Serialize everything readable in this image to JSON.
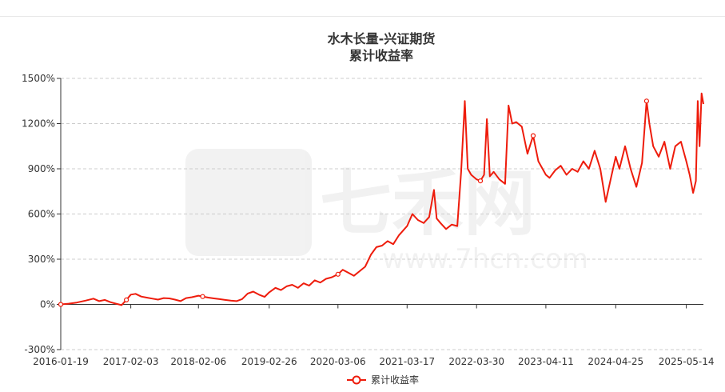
{
  "chart_data": {
    "type": "line",
    "title": "水木长量-兴证期货",
    "subtitle": "累计收益率",
    "watermark": {
      "brand": "七禾网",
      "url": "www.7hcn.com"
    },
    "colors": {
      "line": "#ee1c0c",
      "grid": "#cccccc",
      "axis": "#333333"
    },
    "ylim": [
      -300,
      1500
    ],
    "y_ticks": [
      "-300%",
      "0%",
      "300%",
      "600%",
      "900%",
      "1200%",
      "1500%"
    ],
    "x_ticks": [
      "2016-01-19",
      "2017-02-03",
      "2018-02-06",
      "2019-02-26",
      "2020-03-06",
      "2021-03-17",
      "2022-03-30",
      "2023-04-11",
      "2024-04-25",
      "2025-05-14"
    ],
    "grid": "horizontal-dashed",
    "legend_position": "bottom-center",
    "series": [
      {
        "name": "累计收益率",
        "points": [
          [
            "2016-01-19",
            0
          ],
          [
            "2016-03-01",
            5
          ],
          [
            "2016-04-15",
            12
          ],
          [
            "2016-06-01",
            25
          ],
          [
            "2016-07-15",
            38
          ],
          [
            "2016-08-15",
            22
          ],
          [
            "2016-09-15",
            30
          ],
          [
            "2016-10-15",
            15
          ],
          [
            "2016-11-15",
            5
          ],
          [
            "2016-12-15",
            -5
          ],
          [
            "2017-01-10",
            30
          ],
          [
            "2017-02-03",
            65
          ],
          [
            "2017-03-01",
            70
          ],
          [
            "2017-04-01",
            52
          ],
          [
            "2017-05-01",
            45
          ],
          [
            "2017-06-01",
            38
          ],
          [
            "2017-07-01",
            32
          ],
          [
            "2017-08-01",
            42
          ],
          [
            "2017-09-01",
            40
          ],
          [
            "2017-10-01",
            32
          ],
          [
            "2017-11-01",
            22
          ],
          [
            "2017-12-01",
            42
          ],
          [
            "2018-01-01",
            48
          ],
          [
            "2018-02-06",
            58
          ],
          [
            "2018-03-01",
            52
          ],
          [
            "2018-04-01",
            45
          ],
          [
            "2018-05-01",
            40
          ],
          [
            "2018-06-01",
            35
          ],
          [
            "2018-07-01",
            30
          ],
          [
            "2018-08-01",
            25
          ],
          [
            "2018-09-01",
            22
          ],
          [
            "2018-10-01",
            35
          ],
          [
            "2018-11-01",
            72
          ],
          [
            "2018-12-01",
            85
          ],
          [
            "2019-01-01",
            65
          ],
          [
            "2019-02-01",
            50
          ],
          [
            "2019-02-26",
            80
          ],
          [
            "2019-04-01",
            110
          ],
          [
            "2019-05-01",
            95
          ],
          [
            "2019-06-01",
            120
          ],
          [
            "2019-07-01",
            130
          ],
          [
            "2019-08-01",
            110
          ],
          [
            "2019-09-01",
            140
          ],
          [
            "2019-10-01",
            125
          ],
          [
            "2019-11-01",
            160
          ],
          [
            "2019-12-01",
            145
          ],
          [
            "2020-01-01",
            170
          ],
          [
            "2020-02-01",
            180
          ],
          [
            "2020-03-06",
            200
          ],
          [
            "2020-04-01",
            230
          ],
          [
            "2020-05-01",
            210
          ],
          [
            "2020-06-01",
            190
          ],
          [
            "2020-07-01",
            220
          ],
          [
            "2020-08-01",
            250
          ],
          [
            "2020-09-01",
            330
          ],
          [
            "2020-10-01",
            380
          ],
          [
            "2020-11-01",
            390
          ],
          [
            "2020-12-01",
            420
          ],
          [
            "2021-01-01",
            400
          ],
          [
            "2021-02-01",
            460
          ],
          [
            "2021-03-17",
            520
          ],
          [
            "2021-04-15",
            600
          ],
          [
            "2021-05-15",
            560
          ],
          [
            "2021-06-15",
            540
          ],
          [
            "2021-07-15",
            580
          ],
          [
            "2021-08-10",
            760
          ],
          [
            "2021-08-25",
            570
          ],
          [
            "2021-09-15",
            540
          ],
          [
            "2021-10-15",
            500
          ],
          [
            "2021-11-15",
            530
          ],
          [
            "2021-12-15",
            520
          ],
          [
            "2022-01-05",
            880
          ],
          [
            "2022-01-25",
            1350
          ],
          [
            "2022-02-10",
            900
          ],
          [
            "2022-03-01",
            860
          ],
          [
            "2022-03-30",
            830
          ],
          [
            "2022-04-20",
            820
          ],
          [
            "2022-05-10",
            860
          ],
          [
            "2022-05-25",
            1230
          ],
          [
            "2022-06-10",
            850
          ],
          [
            "2022-07-01",
            880
          ],
          [
            "2022-08-01",
            830
          ],
          [
            "2022-09-01",
            800
          ],
          [
            "2022-09-20",
            1320
          ],
          [
            "2022-10-10",
            1200
          ],
          [
            "2022-11-01",
            1210
          ],
          [
            "2022-12-01",
            1180
          ],
          [
            "2023-01-01",
            1000
          ],
          [
            "2023-02-01",
            1120
          ],
          [
            "2023-03-01",
            950
          ],
          [
            "2023-04-11",
            860
          ],
          [
            "2023-05-01",
            840
          ],
          [
            "2023-06-01",
            890
          ],
          [
            "2023-07-01",
            920
          ],
          [
            "2023-08-01",
            860
          ],
          [
            "2023-09-01",
            900
          ],
          [
            "2023-10-01",
            880
          ],
          [
            "2023-11-01",
            950
          ],
          [
            "2023-12-01",
            900
          ],
          [
            "2024-01-01",
            1020
          ],
          [
            "2024-02-01",
            900
          ],
          [
            "2024-03-01",
            680
          ],
          [
            "2024-04-01",
            850
          ],
          [
            "2024-04-25",
            980
          ],
          [
            "2024-05-15",
            900
          ],
          [
            "2024-06-15",
            1050
          ],
          [
            "2024-07-15",
            900
          ],
          [
            "2024-08-15",
            780
          ],
          [
            "2024-09-15",
            940
          ],
          [
            "2024-10-10",
            1350
          ],
          [
            "2024-10-25",
            1200
          ],
          [
            "2024-11-15",
            1050
          ],
          [
            "2024-12-15",
            980
          ],
          [
            "2025-01-15",
            1080
          ],
          [
            "2025-02-15",
            900
          ],
          [
            "2025-03-15",
            1050
          ],
          [
            "2025-04-15",
            1080
          ],
          [
            "2025-05-14",
            950
          ],
          [
            "2025-06-01",
            860
          ],
          [
            "2025-06-20",
            740
          ],
          [
            "2025-07-05",
            820
          ],
          [
            "2025-07-15",
            1350
          ],
          [
            "2025-07-25",
            1050
          ],
          [
            "2025-08-05",
            1400
          ],
          [
            "2025-08-15",
            1330
          ]
        ]
      }
    ]
  }
}
